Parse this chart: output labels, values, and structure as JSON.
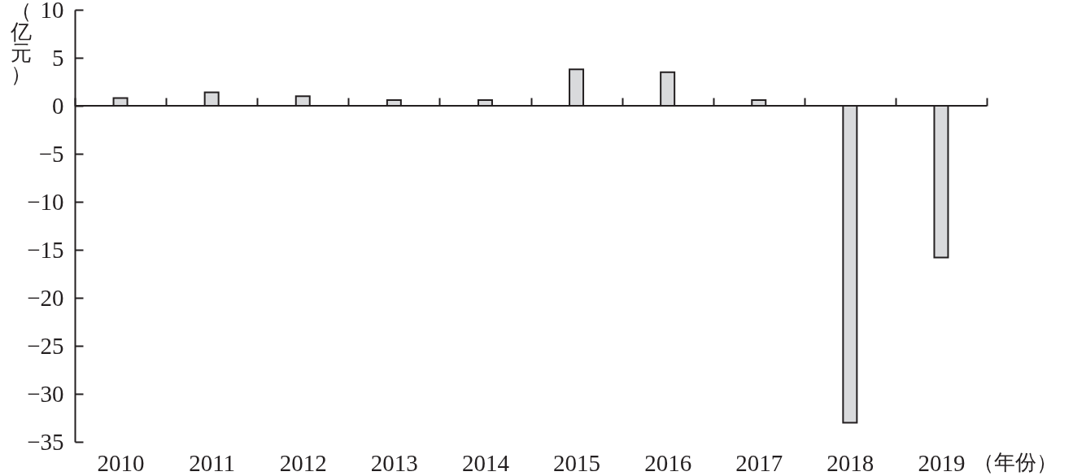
{
  "chart_data": {
    "type": "bar",
    "categories": [
      "2010",
      "2011",
      "2012",
      "2013",
      "2014",
      "2015",
      "2016",
      "2017",
      "2018",
      "2019"
    ],
    "values": [
      0.8,
      1.4,
      1.0,
      0.6,
      0.6,
      3.8,
      3.5,
      0.6,
      -33,
      -15.8
    ],
    "color": "#d9dadc",
    "xlabel": "（年份）",
    "ylabel": "（亿元）",
    "ylim": [
      -35,
      10
    ],
    "yticks": [
      -35,
      -30,
      -25,
      -20,
      -15,
      -10,
      -5,
      0,
      5,
      10
    ],
    "grid": false,
    "ref_lines": [
      {
        "axis": "y",
        "value": 0,
        "color": "#231f20"
      }
    ]
  }
}
